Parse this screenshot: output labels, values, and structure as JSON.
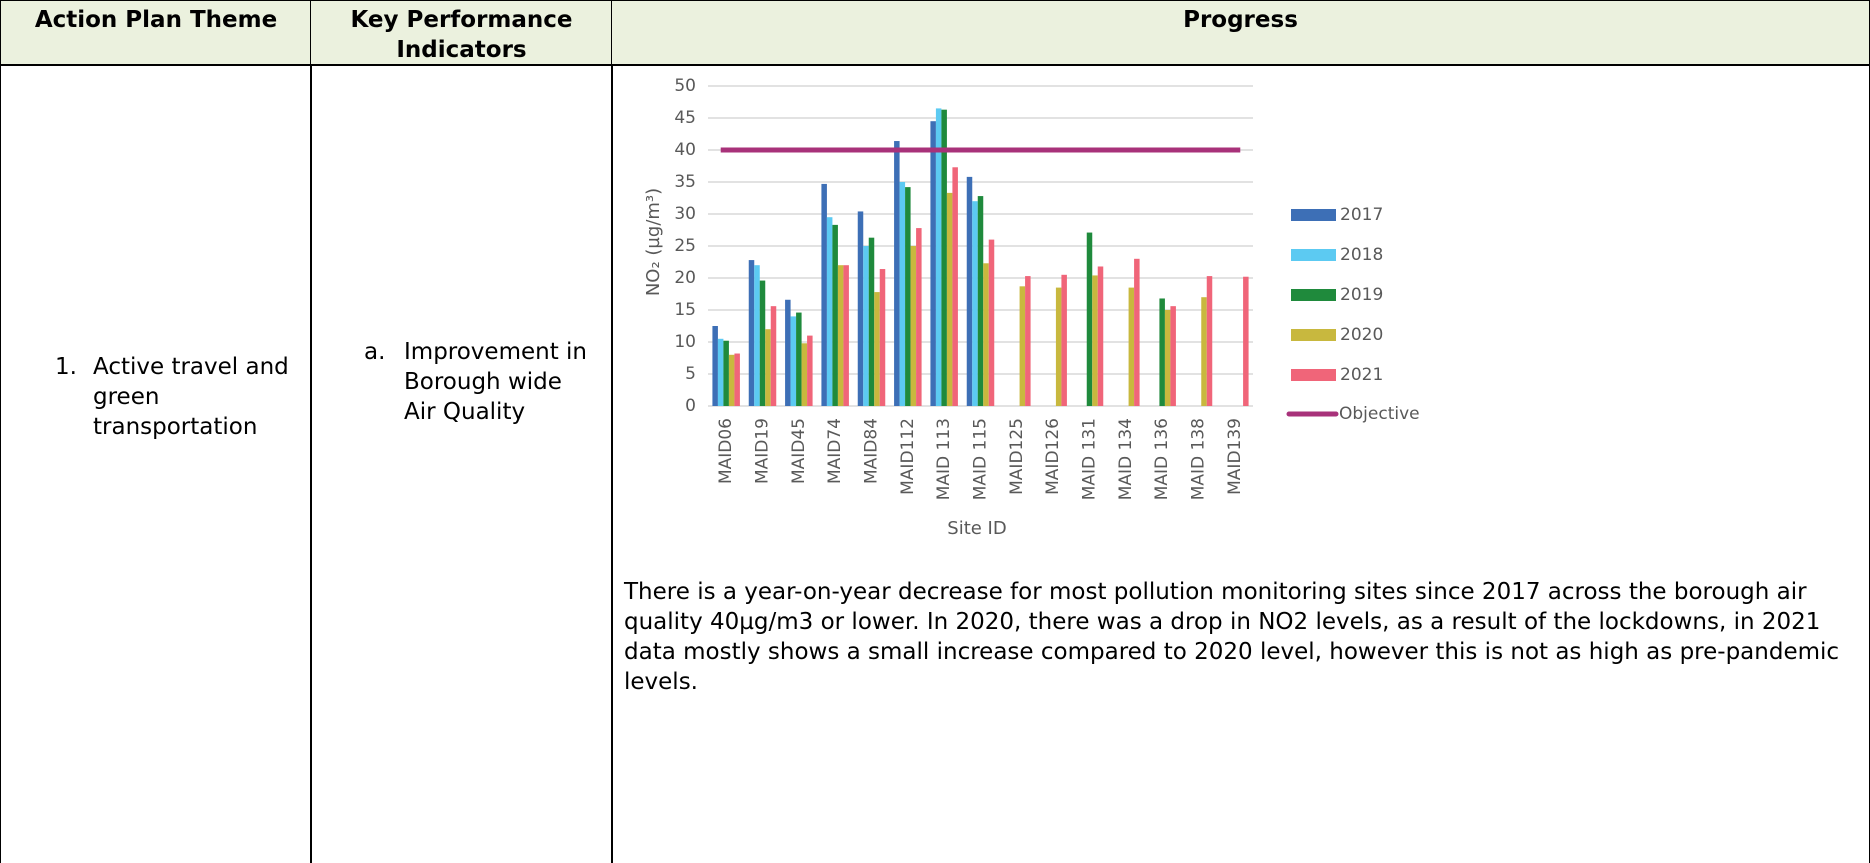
{
  "table": {
    "header": [
      "Action Plan Theme",
      "Key Performance Indicators",
      "Progress"
    ],
    "rows": [
      {
        "theme_number": "1.",
        "theme": "Active travel and green transportation",
        "kpi_letter": "a.",
        "kpi": "Improvement in Borough wide Air Quality",
        "progress_text": "There is a year-on-year decrease for most pollution monitoring sites since 2017 across the borough air quality 40µg/m3 or lower. In 2020, there was a drop in NO2 levels, as a result of the lockdowns, in 2021 data mostly shows a small increase compared to 2020 level, however this is not as high as pre-pandemic levels."
      }
    ]
  },
  "chart_data": {
    "type": "bar",
    "y_label": "NO₂ (µg/m³)",
    "x_label": "Site ID",
    "categories": [
      "MAID06",
      "MAID19",
      "MAID45",
      "MAID74",
      "MAID84",
      "MAID112",
      "MAID 113",
      "MAID 115",
      "MAID125",
      "MAID126",
      "MAID 131",
      "MAID 134",
      "MAID 136",
      "MAID 138",
      "MAID139"
    ],
    "series": [
      {
        "name": "2017",
        "color": "#3d6fb6",
        "values": [
          12.5,
          22.8,
          16.6,
          34.7,
          30.4,
          41.4,
          44.5,
          35.8,
          null,
          null,
          null,
          null,
          null,
          null,
          null
        ]
      },
      {
        "name": "2018",
        "color": "#5ccaf2",
        "values": [
          10.5,
          22,
          14,
          29.5,
          25,
          35,
          46.5,
          32,
          null,
          null,
          null,
          null,
          null,
          null,
          null
        ]
      },
      {
        "name": "2019",
        "color": "#1f8a3c",
        "values": [
          10.2,
          19.6,
          14.6,
          28.3,
          26.3,
          34.2,
          46.3,
          32.8,
          null,
          null,
          27.1,
          null,
          16.8,
          null,
          null
        ]
      },
      {
        "name": "2020",
        "color": "#c8b83e",
        "values": [
          8,
          12,
          9.8,
          22,
          17.8,
          25,
          33.3,
          22.3,
          18.7,
          18.5,
          20.4,
          18.5,
          15,
          17,
          null
        ]
      },
      {
        "name": "2021",
        "color": "#f06579",
        "values": [
          8.2,
          15.6,
          11,
          22,
          21.4,
          27.8,
          37.3,
          26,
          20.3,
          20.5,
          21.8,
          23,
          15.6,
          20.3,
          20.2
        ]
      }
    ],
    "objective": {
      "name": "Objective",
      "color": "#a8327a",
      "value": 40
    },
    "ylim": [
      0,
      50
    ],
    "yticks": [
      0,
      5,
      10,
      15,
      20,
      25,
      30,
      35,
      40,
      45,
      50
    ],
    "grid": true
  }
}
